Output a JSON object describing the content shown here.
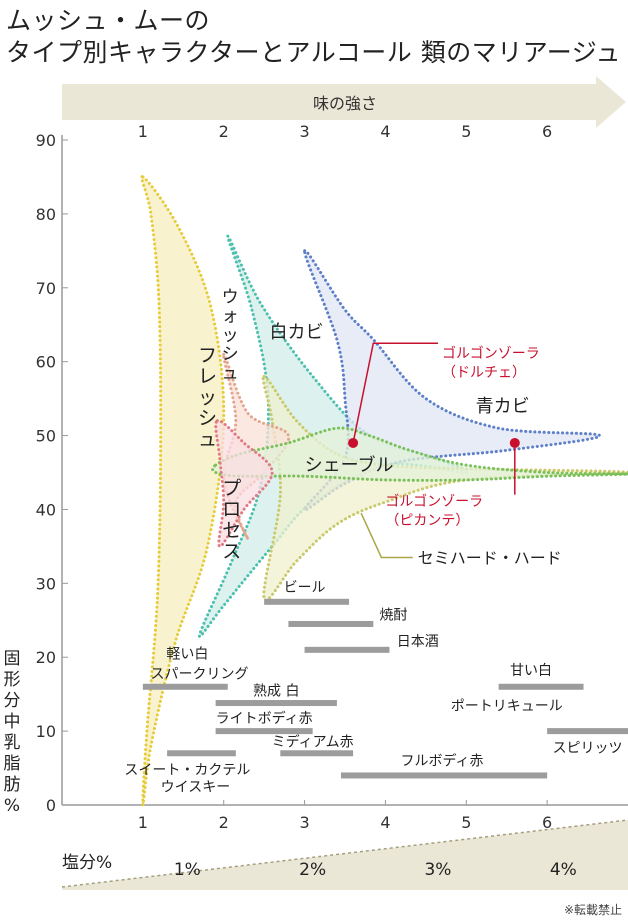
{
  "title": {
    "line1": "ムッシュ・ムーの",
    "line2": "タイプ別キャラクターとアルコール 類のマリアージュ"
  },
  "footnote": "※転載禁止",
  "chart_data": {
    "type": "area",
    "x_axis": {
      "label": "味の強さ",
      "range": [
        0,
        7
      ],
      "ticks": [
        1,
        2,
        3,
        4,
        5,
        6
      ]
    },
    "y_axis": {
      "label": "固形分中乳脂肪%",
      "range": [
        0,
        90
      ],
      "ticks": [
        0,
        10,
        20,
        30,
        40,
        50,
        60,
        70,
        80,
        90
      ]
    },
    "salt_axis": {
      "label": "塩分%",
      "ticks": [
        {
          "label": "1%",
          "x": 1.55
        },
        {
          "label": "2%",
          "x": 3.1
        },
        {
          "label": "3%",
          "x": 4.65
        },
        {
          "label": "4%",
          "x": 6.2
        }
      ]
    },
    "cheese_types": [
      {
        "name": "フレッシュ",
        "color": "#e6cc3a",
        "fill": "#f6eebe",
        "label_x": 1.8,
        "label_y": 60,
        "outline": [
          [
            1,
            85
          ],
          [
            1.45,
            78
          ],
          [
            1.85,
            67
          ],
          [
            2.0,
            52
          ],
          [
            1.8,
            35
          ],
          [
            1.4,
            22
          ],
          [
            1.1,
            8
          ],
          [
            1,
            0
          ],
          [
            1.05,
            10
          ],
          [
            1.18,
            28
          ],
          [
            1.22,
            48
          ],
          [
            1.2,
            68
          ],
          [
            1.1,
            80
          ]
        ]
      },
      {
        "name": "ウォッシュ",
        "color": "#e3a58e",
        "fill": "#fae1d7",
        "label_x": 2.08,
        "label_y": 68,
        "outline": [
          [
            2.0,
            61
          ],
          [
            2.3,
            53
          ],
          [
            2.8,
            50
          ],
          [
            2.5,
            45
          ],
          [
            2.15,
            41
          ],
          [
            2.3,
            36
          ],
          [
            2.0,
            44
          ],
          [
            2.15,
            52
          ]
        ]
      },
      {
        "name": "白カビ",
        "color": "#4cc0ae",
        "fill": "#d2eee8",
        "label_x": 2.9,
        "label_y": 64,
        "outline": [
          [
            2.05,
            77
          ],
          [
            2.45,
            68
          ],
          [
            3.1,
            58
          ],
          [
            3.8,
            50
          ],
          [
            4.6,
            47
          ],
          [
            5.0,
            45
          ],
          [
            4.0,
            46
          ],
          [
            3.1,
            41
          ],
          [
            2.6,
            35
          ],
          [
            2.0,
            27
          ],
          [
            1.7,
            23
          ],
          [
            2.1,
            33
          ],
          [
            2.45,
            43
          ],
          [
            2.55,
            55
          ],
          [
            2.35,
            67
          ]
        ]
      },
      {
        "name": "青カビ",
        "color": "#5d7fc8",
        "fill": "#dfe6f4",
        "label_x": 5.45,
        "label_y": 54,
        "outline": [
          [
            3.0,
            75
          ],
          [
            3.5,
            67
          ],
          [
            3.85,
            63
          ],
          [
            4.5,
            55
          ],
          [
            5.4,
            51
          ],
          [
            6.65,
            50
          ],
          [
            5.5,
            48
          ],
          [
            4.2,
            46.5
          ],
          [
            3.5,
            43.5
          ],
          [
            3.0,
            40
          ],
          [
            3.5,
            47
          ],
          [
            3.5,
            55
          ],
          [
            3.4,
            63
          ]
        ]
      },
      {
        "name": "プロセス",
        "color": "#e07a86",
        "fill": "#f9dde1",
        "label_x": 2.1,
        "label_y": 42,
        "outline": [
          [
            1.92,
            52
          ],
          [
            2.25,
            49
          ],
          [
            2.6,
            45
          ],
          [
            2.25,
            40
          ],
          [
            1.95,
            35
          ],
          [
            2.0,
            41
          ],
          [
            1.95,
            47
          ]
        ]
      },
      {
        "name": "シェーブル",
        "color": "#7ac05a",
        "fill": "#e3f1d8",
        "label_x": 3.55,
        "label_y": 46,
        "outline": [
          [
            1.9,
            46
          ],
          [
            2.2,
            47.5
          ],
          [
            2.8,
            49
          ],
          [
            3.4,
            51
          ],
          [
            3.8,
            50
          ],
          [
            4.3,
            48
          ],
          [
            5.0,
            46
          ],
          [
            6.0,
            45
          ],
          [
            7.0,
            44.8
          ],
          [
            6.0,
            44.5
          ],
          [
            5.0,
            44
          ],
          [
            4.0,
            44
          ],
          [
            3.0,
            44.5
          ],
          [
            2.2,
            44.5
          ],
          [
            1.9,
            45
          ]
        ]
      },
      {
        "name": "セミハード・ハード",
        "color": "#c9c86a",
        "fill": "#eff0cd",
        "label_x": 4.4,
        "label_y": 33.5,
        "outline": [
          [
            2.5,
            58
          ],
          [
            2.9,
            52
          ],
          [
            3.4,
            47.5
          ],
          [
            4.0,
            46
          ],
          [
            5.0,
            45.5
          ],
          [
            7.0,
            45
          ],
          [
            5.0,
            44
          ],
          [
            4.0,
            41
          ],
          [
            3.4,
            38
          ],
          [
            2.9,
            33
          ],
          [
            2.5,
            28
          ],
          [
            2.7,
            42
          ],
          [
            2.6,
            52
          ]
        ]
      }
    ],
    "gorgonzola": [
      {
        "label_line1": "ゴルゴンゾーラ",
        "label_line2": "（ドルチェ）",
        "x": 3.6,
        "y": 49,
        "label_x": 4.7,
        "label_y": 60.5,
        "color": "#c8102e"
      },
      {
        "label_line1": "ゴルゴンゾーラ",
        "label_line2": "（ピカンテ）",
        "x": 5.6,
        "y": 49,
        "label_x": 4.0,
        "label_y": 40.5,
        "color": "#c8102e"
      }
    ],
    "alcohol": [
      {
        "name": "ビール",
        "x_start": 2.5,
        "x_end": 3.55,
        "y": 27.5,
        "label_x": 3.0,
        "label_y": 29.5
      },
      {
        "name": "焼酎",
        "x_start": 2.8,
        "x_end": 3.85,
        "y": 24.5,
        "label_x": 4.1,
        "label_y": 25.8
      },
      {
        "name": "日本酒",
        "x_start": 3.0,
        "x_end": 4.05,
        "y": 21,
        "label_x": 4.4,
        "label_y": 22.2
      },
      {
        "name": "甘い白",
        "x_start": 5.4,
        "x_end": 6.45,
        "y": 16,
        "label_x": 5.8,
        "label_y": 18.3
      },
      {
        "name": "ポートリキュール",
        "x_start": 5.4,
        "x_end": 6.45,
        "y": 16,
        "label_x": 5.5,
        "label_y": 13.5
      },
      {
        "name": "軽い白",
        "x_start": 1.0,
        "x_end": 2.05,
        "y": 16,
        "label_x": 1.55,
        "label_y": 20.5
      },
      {
        "name": "スパークリング",
        "x_start": 1.0,
        "x_end": 2.05,
        "y": 16,
        "label_x": 1.7,
        "label_y": 17.8
      },
      {
        "name": "熟成 白",
        "x_start": 1.9,
        "x_end": 3.4,
        "y": 13.8,
        "label_x": 2.65,
        "label_y": 15.5
      },
      {
        "name": "ライトボディ赤",
        "x_start": 1.9,
        "x_end": 3.1,
        "y": 10,
        "label_x": 2.5,
        "label_y": 11.8
      },
      {
        "name": "ミディアム赤",
        "x_start": 2.7,
        "x_end": 3.6,
        "y": 7,
        "label_x": 3.1,
        "label_y": 8.6
      },
      {
        "name": "スイート・カクテル",
        "x_start": 1.3,
        "x_end": 2.15,
        "y": 7,
        "label_x": 1.55,
        "label_y": 4.8
      },
      {
        "name": "ウイスキー",
        "x_start": 1.3,
        "x_end": 2.15,
        "y": 7,
        "label_x": 1.65,
        "label_y": 2.5
      },
      {
        "name": "フルボディ赤",
        "x_start": 3.45,
        "x_end": 6.0,
        "y": 4,
        "label_x": 4.7,
        "label_y": 6
      },
      {
        "name": "スピリッツ",
        "x_start": 6.0,
        "x_end": 7.0,
        "y": 10,
        "label_x": 6.5,
        "label_y": 7.8
      }
    ]
  }
}
